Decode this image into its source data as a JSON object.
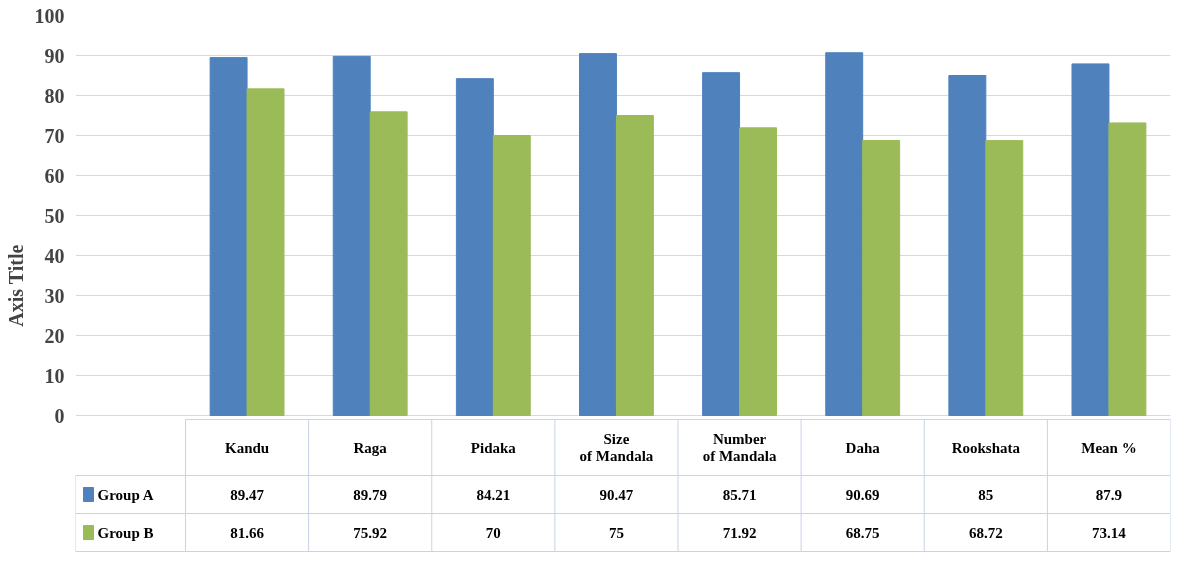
{
  "chart_data": {
    "type": "bar",
    "ylabel": "Axis Title",
    "categories": [
      "Kandu",
      "Raga",
      "Pidaka",
      "Size of Mandala",
      "Number of Mandala",
      "Daha",
      "Rookshata",
      "Mean %"
    ],
    "series": [
      {
        "name": "Group A",
        "color": "#4f81bd",
        "values": [
          89.47,
          89.79,
          84.21,
          90.47,
          85.71,
          90.69,
          85,
          87.9
        ]
      },
      {
        "name": "Group B",
        "color": "#9bbb59",
        "values": [
          81.66,
          75.92,
          70,
          75,
          71.92,
          68.75,
          68.72,
          73.14
        ]
      }
    ],
    "ylim": [
      0,
      100
    ],
    "yticks": [
      0,
      10,
      20,
      30,
      40,
      50,
      60,
      70,
      80,
      90,
      100
    ],
    "grid": "y",
    "data_labels": true,
    "legend": "bottom"
  }
}
